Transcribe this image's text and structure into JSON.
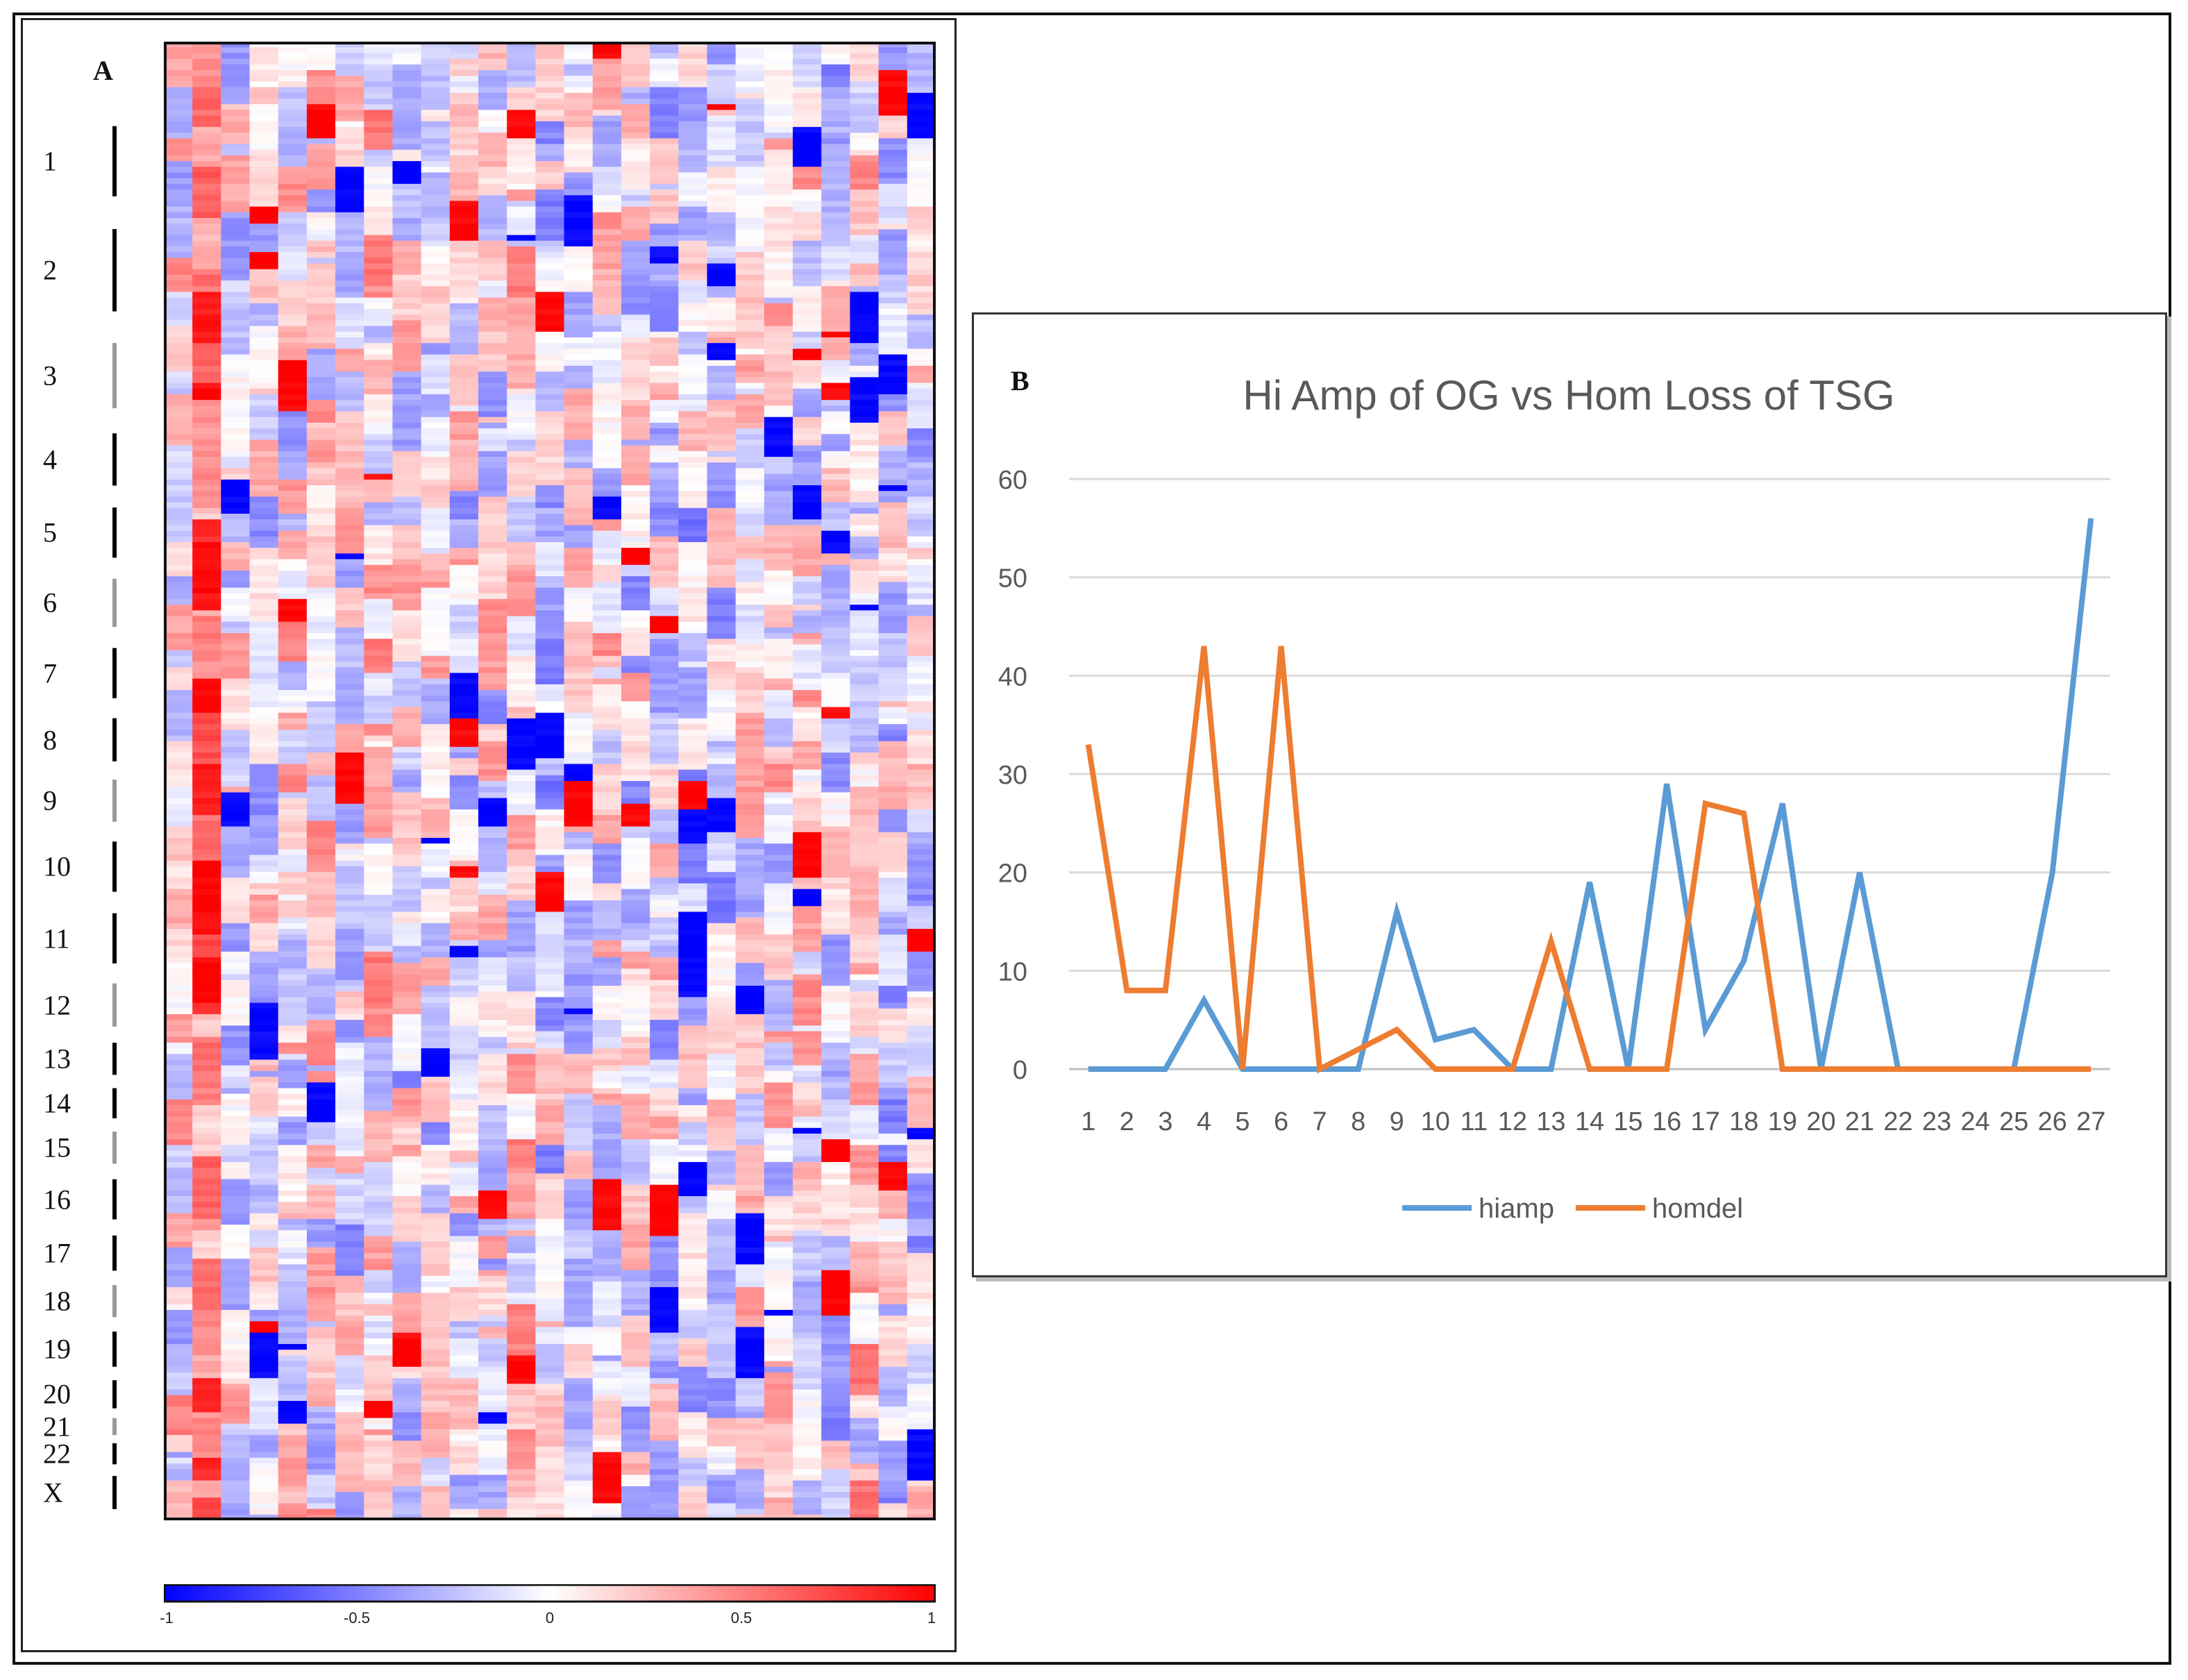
{
  "panel_a": {
    "letter": "A",
    "chromosomes": [
      {
        "label": "1",
        "share": 7.0
      },
      {
        "label": "2",
        "share": 8.2
      },
      {
        "label": "3",
        "share": 6.5
      },
      {
        "label": "4",
        "share": 5.2
      },
      {
        "label": "5",
        "share": 5.0
      },
      {
        "label": "6",
        "share": 4.8
      },
      {
        "label": "7",
        "share": 5.0
      },
      {
        "label": "8",
        "share": 4.3
      },
      {
        "label": "9",
        "share": 4.2
      },
      {
        "label": "10",
        "share": 5.0
      },
      {
        "label": "11",
        "share": 5.0
      },
      {
        "label": "12",
        "share": 4.3
      },
      {
        "label": "13",
        "share": 3.2
      },
      {
        "label": "14",
        "share": 3.0
      },
      {
        "label": "15",
        "share": 3.2
      },
      {
        "label": "16",
        "share": 4.0
      },
      {
        "label": "17",
        "share": 3.5
      },
      {
        "label": "18",
        "share": 3.2
      },
      {
        "label": "19",
        "share": 3.5
      },
      {
        "label": "20",
        "share": 2.8
      },
      {
        "label": "21",
        "share": 1.7
      },
      {
        "label": "22",
        "share": 2.1
      },
      {
        "label": "X",
        "share": 3.3
      }
    ],
    "heatmap": {
      "sample_columns": 27,
      "value_range": [
        -1,
        1
      ],
      "colors": {
        "low": "#0000ff",
        "mid": "#ffffff",
        "high": "#ff0000"
      }
    },
    "colorbar_ticks": [
      "-1",
      "-0.5",
      "0",
      "0.5",
      "1"
    ]
  },
  "chart_data": {
    "type": "line",
    "panel_letter": "B",
    "title": "Hi Amp of OG vs Hom Loss of TSG",
    "xlabel": "",
    "ylabel": "",
    "x": [
      1,
      2,
      3,
      4,
      5,
      6,
      7,
      8,
      9,
      10,
      11,
      12,
      13,
      14,
      15,
      16,
      17,
      18,
      19,
      20,
      21,
      22,
      23,
      24,
      25,
      26,
      27
    ],
    "ylim": [
      0,
      60
    ],
    "yticks": [
      0,
      10,
      20,
      30,
      40,
      50,
      60
    ],
    "grid": true,
    "legend": "bottom-center",
    "series": [
      {
        "name": "hiamp",
        "color": "#5b9bd5",
        "values": [
          0,
          0,
          0,
          7,
          0,
          0,
          0,
          0,
          16,
          3,
          4,
          0,
          0,
          19,
          0,
          29,
          4,
          11,
          27,
          0,
          20,
          0,
          0,
          0,
          0,
          20,
          56
        ]
      },
      {
        "name": "homdel",
        "color": "#ed7d31",
        "values": [
          33,
          8,
          8,
          43,
          0,
          43,
          0,
          2,
          4,
          0,
          0,
          0,
          13,
          0,
          0,
          0,
          27,
          26,
          0,
          0,
          0,
          0,
          0,
          0,
          0,
          0,
          0
        ]
      }
    ]
  }
}
